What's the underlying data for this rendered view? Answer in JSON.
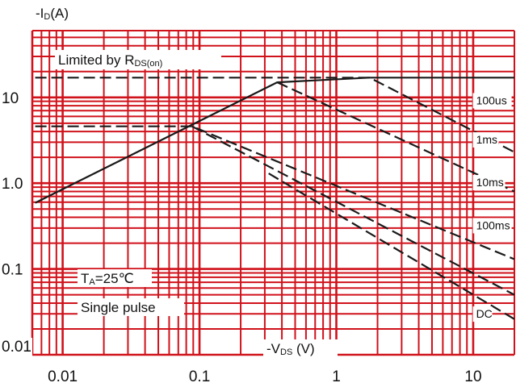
{
  "chart_data": {
    "type": "line",
    "title": "",
    "xlabel": "-V",
    "xlabel_sub": "DS",
    "xlabel_unit": " (V)",
    "ylabel": "-I",
    "ylabel_sub": "D",
    "ylabel_unit": "(A)",
    "x_scale": "log",
    "y_scale": "log",
    "xlim": [
      0.006,
      20
    ],
    "ylim": [
      0.01,
      60
    ],
    "x_ticks": [
      {
        "value": 0.01,
        "label": "0.01"
      },
      {
        "value": 0.1,
        "label": "0.1"
      },
      {
        "value": 1,
        "label": "1"
      },
      {
        "value": 10,
        "label": "10"
      }
    ],
    "y_ticks": [
      {
        "value": 0.01,
        "label": "0.01"
      },
      {
        "value": 0.1,
        "label": "0.1"
      },
      {
        "value": 1,
        "label": "1.0"
      },
      {
        "value": 10,
        "label": "10"
      }
    ],
    "grid": true,
    "grid_color": "#d0121b",
    "line_color": "#1a1a1a",
    "annotations": {
      "limit_prefix": "Limited by R",
      "limit_sub": "DS(on)",
      "temp_prefix": "T",
      "temp_sub": "A",
      "temp_value": "=25℃",
      "pulse": "Single pulse"
    },
    "series": [
      {
        "name": "100us",
        "style": "dashed",
        "points": [
          [
            0.0063,
            17
          ],
          [
            0.37,
            17
          ],
          [
            1.75,
            17
          ],
          [
            20,
            2.3
          ]
        ]
      },
      {
        "name": "1ms",
        "style": "dashed",
        "points": [
          [
            0.37,
            15
          ],
          [
            20,
            0.8
          ]
        ]
      },
      {
        "name": "10ms",
        "style": "dashed",
        "points": [
          [
            0.0063,
            4.6
          ],
          [
            0.088,
            4.6
          ],
          [
            20,
            0.13
          ]
        ]
      },
      {
        "name": "100ms",
        "style": "dashed",
        "points": [
          [
            0.088,
            4.6
          ],
          [
            20,
            0.05
          ]
        ]
      },
      {
        "name": "DC",
        "style": "dashed",
        "points": [
          [
            0.32,
            1.3
          ],
          [
            20,
            0.026
          ]
        ]
      },
      {
        "name": "",
        "style": "solid",
        "points": [
          [
            0.0063,
            0.59
          ],
          [
            0.37,
            15
          ],
          [
            1.75,
            17
          ],
          [
            20,
            17
          ]
        ]
      }
    ],
    "curve_labels": [
      {
        "text": "100us",
        "x": 10.5,
        "y": 8.3
      },
      {
        "text": "1ms",
        "x": 10.5,
        "y": 2.9
      },
      {
        "text": "10ms",
        "x": 10.5,
        "y": 0.92
      },
      {
        "text": "100ms",
        "x": 10.5,
        "y": 0.29
      },
      {
        "text": "DC",
        "x": 10.5,
        "y": 0.027
      }
    ]
  }
}
